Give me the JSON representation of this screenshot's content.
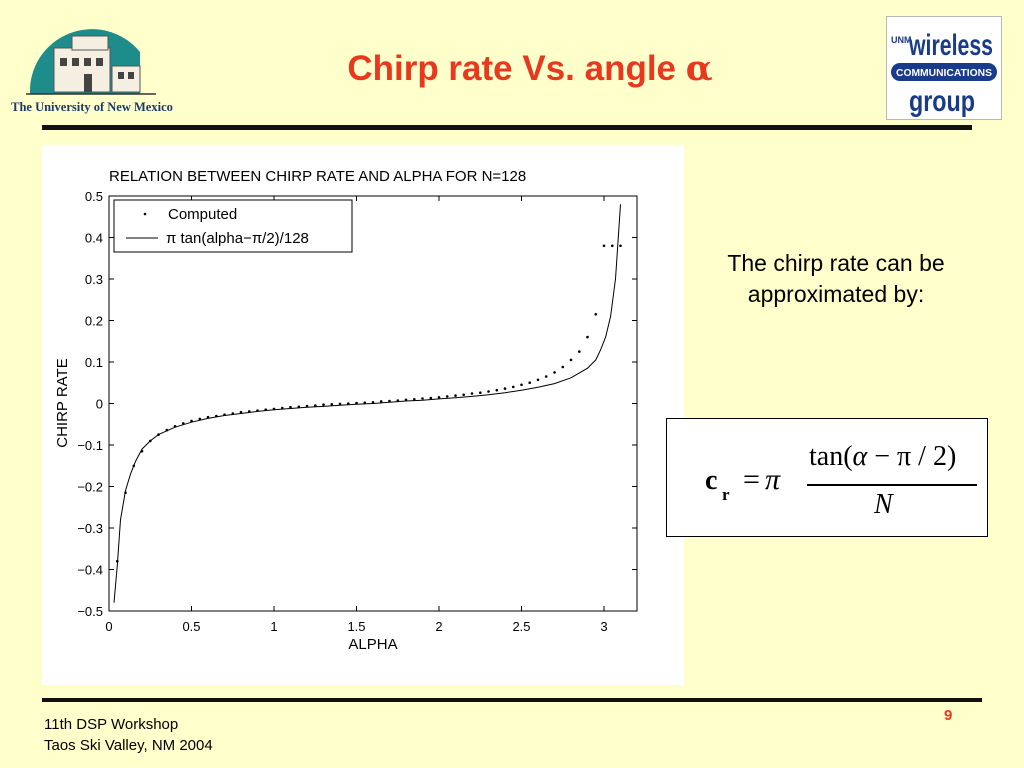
{
  "slide": {
    "title_prefix": "Chirp rate Vs. angle ",
    "title_symbol": "α",
    "side_text": "The chirp rate can be approximated by:",
    "footer_line1": "11th DSP Workshop",
    "footer_line2": "Taos Ski Valley, NM 2004",
    "page_number": "9",
    "accent_color": "#e8381e",
    "background_color": "#ffffcc"
  },
  "logos": {
    "university": {
      "text": "The University of New Mexico",
      "icon": "unm-building-logo"
    },
    "wireless_group": {
      "icon": "wireless-communications-group-logo",
      "line1": "wireless",
      "line2": "COMMUNICATIONS",
      "line3": "group",
      "tag": "UNM"
    }
  },
  "formula": {
    "lhs": "c",
    "lhs_subscript": "r",
    "equals": "=",
    "pi": "π",
    "numerator_tan": "tan(",
    "numerator_alpha": "α",
    "numerator_rest": " − π / 2)",
    "denominator": "N"
  },
  "chart_data": {
    "type": "line",
    "title": "RELATION BETWEEN CHIRP RATE AND ALPHA FOR N=128",
    "xlabel": "ALPHA",
    "ylabel": "CHIRP RATE",
    "xlim": [
      0,
      3.2
    ],
    "ylim": [
      -0.5,
      0.5
    ],
    "x_ticks": [
      0,
      0.5,
      1,
      1.5,
      2,
      2.5,
      3
    ],
    "x_tick_labels": [
      "0",
      "0.5",
      "1",
      "1.5",
      "2",
      "2.5",
      "3"
    ],
    "y_ticks": [
      -0.5,
      -0.4,
      -0.3,
      -0.2,
      -0.1,
      0,
      0.1,
      0.2,
      0.3,
      0.4,
      0.5
    ],
    "y_tick_labels": [
      "−0.5",
      "−0.4",
      "−0.3",
      "−0.2",
      "−0.1",
      "0",
      "0.1",
      "0.2",
      "0.3",
      "0.4",
      "0.5"
    ],
    "grid": false,
    "legend_position": "top-left",
    "series": [
      {
        "name": "Computed",
        "style": "points",
        "x": [
          0.05,
          0.1,
          0.15,
          0.2,
          0.25,
          0.3,
          0.35,
          0.4,
          0.45,
          0.5,
          0.55,
          0.6,
          0.65,
          0.7,
          0.75,
          0.8,
          0.85,
          0.9,
          0.95,
          1.0,
          1.05,
          1.1,
          1.15,
          1.2,
          1.25,
          1.3,
          1.35,
          1.4,
          1.45,
          1.5,
          1.55,
          1.6,
          1.65,
          1.7,
          1.75,
          1.8,
          1.85,
          1.9,
          1.95,
          2.0,
          2.05,
          2.1,
          2.15,
          2.2,
          2.25,
          2.3,
          2.35,
          2.4,
          2.45,
          2.5,
          2.55,
          2.6,
          2.65,
          2.7,
          2.75,
          2.8,
          2.85,
          2.9,
          2.95,
          3.0,
          3.05,
          3.1
        ],
        "y": [
          -0.38,
          -0.215,
          -0.15,
          -0.115,
          -0.09,
          -0.075,
          -0.064,
          -0.055,
          -0.048,
          -0.042,
          -0.037,
          -0.033,
          -0.03,
          -0.027,
          -0.024,
          -0.021,
          -0.019,
          -0.017,
          -0.015,
          -0.013,
          -0.011,
          -0.009,
          -0.008,
          -0.006,
          -0.005,
          -0.003,
          -0.002,
          -0.001,
          0.0,
          0.001,
          0.002,
          0.003,
          0.005,
          0.006,
          0.007,
          0.009,
          0.01,
          0.012,
          0.013,
          0.015,
          0.017,
          0.019,
          0.021,
          0.024,
          0.026,
          0.029,
          0.032,
          0.036,
          0.04,
          0.045,
          0.05,
          0.057,
          0.065,
          0.075,
          0.088,
          0.105,
          0.125,
          0.16,
          0.215,
          0.38,
          0.38,
          0.38
        ]
      },
      {
        "name": "π tan(alpha−π/2)/128",
        "style": "line",
        "x": [
          0.03,
          0.05,
          0.07,
          0.1,
          0.13,
          0.16,
          0.2,
          0.25,
          0.3,
          0.4,
          0.5,
          0.6,
          0.7,
          0.8,
          0.9,
          1.0,
          1.1,
          1.2,
          1.3,
          1.4,
          1.5,
          1.6,
          1.7,
          1.8,
          1.9,
          2.0,
          2.1,
          2.2,
          2.3,
          2.4,
          2.5,
          2.6,
          2.7,
          2.8,
          2.9,
          2.95,
          2.98,
          3.01,
          3.04,
          3.07,
          3.1
        ],
        "y": [
          -0.48,
          -0.39,
          -0.28,
          -0.21,
          -0.17,
          -0.14,
          -0.11,
          -0.09,
          -0.075,
          -0.057,
          -0.045,
          -0.036,
          -0.029,
          -0.024,
          -0.019,
          -0.015,
          -0.012,
          -0.009,
          -0.007,
          -0.004,
          -0.002,
          0.0,
          0.003,
          0.006,
          0.008,
          0.011,
          0.014,
          0.017,
          0.021,
          0.026,
          0.032,
          0.039,
          0.048,
          0.062,
          0.085,
          0.105,
          0.13,
          0.16,
          0.21,
          0.3,
          0.48
        ]
      }
    ]
  }
}
